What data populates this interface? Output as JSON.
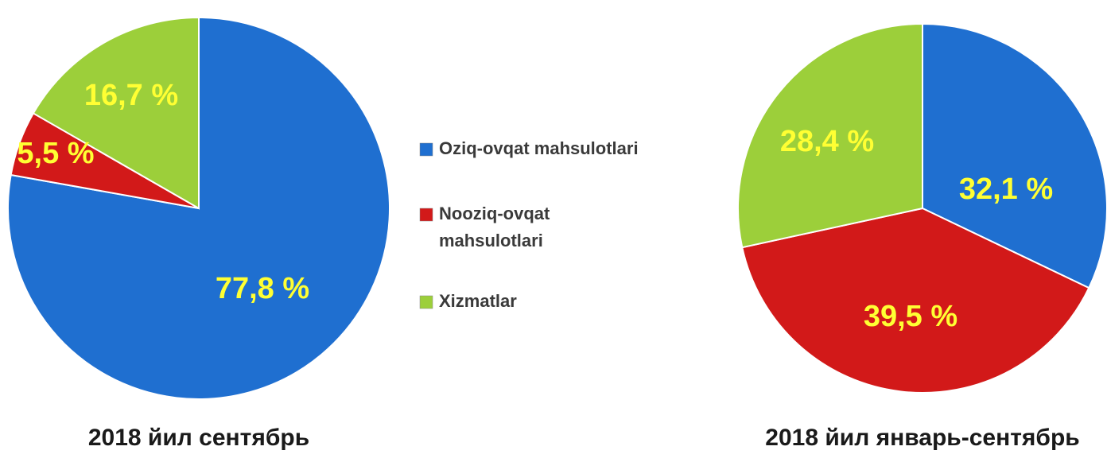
{
  "chart_data": [
    {
      "type": "pie",
      "title": "2018 йил сентябрь",
      "categories": [
        "Oziq-ovqat mahsulotlari",
        "Nooziq-ovqat mahsulotlari",
        "Xizmatlar"
      ],
      "values": [
        77.8,
        5.5,
        16.7
      ],
      "value_labels": [
        "77,8 %",
        "5,5 %",
        "16,7 %"
      ],
      "colors": [
        "#1f6fd0",
        "#d21919",
        "#9ccf3a"
      ]
    },
    {
      "type": "pie",
      "title": "2018 йил январь-сентябрь",
      "values": [
        32.1,
        39.5,
        28.4
      ],
      "value_labels": [
        "32,1 %",
        "39,5 %",
        "28,4 %"
      ],
      "colors": [
        "#1f6fd0",
        "#d21919",
        "#9ccf3a"
      ]
    }
  ]
}
